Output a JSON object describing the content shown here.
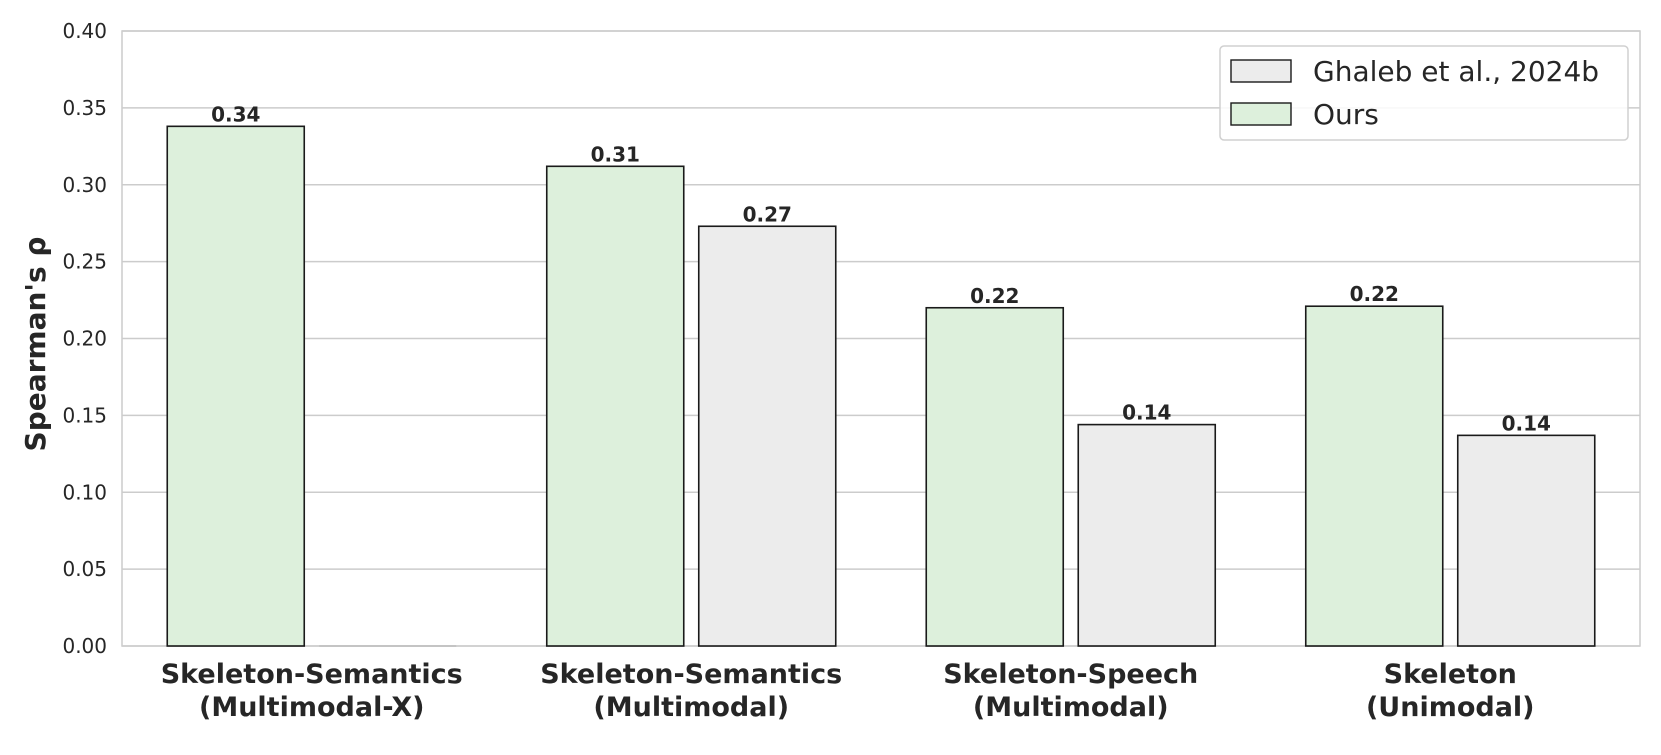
{
  "chart_data": {
    "type": "bar",
    "categories": [
      [
        "Skeleton-Semantics",
        "(Multimodal-X)"
      ],
      [
        "Skeleton-Semantics",
        "(Multimodal)"
      ],
      [
        "Skeleton-Speech",
        "(Multimodal)"
      ],
      [
        "Skeleton",
        "(Unimodal)"
      ]
    ],
    "series": [
      {
        "name": "Ours",
        "color": "#ddf0dc",
        "values": [
          0.338,
          0.312,
          0.22,
          0.221
        ],
        "labels": [
          "0.34",
          "0.31",
          "0.22",
          "0.22"
        ]
      },
      {
        "name": "Ghaleb et al., 2024b",
        "color": "#ececec",
        "values": [
          0.0,
          0.273,
          0.144,
          0.137
        ],
        "labels": [
          "",
          "0.27",
          "0.14",
          "0.14"
        ]
      }
    ],
    "legend_order": [
      1,
      0
    ],
    "ylabel": "Spearman's ρ",
    "xlabel": "",
    "ylim": [
      0,
      0.4
    ],
    "yticks": [
      "0.00",
      "0.05",
      "0.10",
      "0.15",
      "0.20",
      "0.25",
      "0.30",
      "0.35",
      "0.40"
    ],
    "grid": "horizontal",
    "legend_position": "top-right",
    "colors": {
      "grid": "#cccccc",
      "edge": "#1a1a1a",
      "text": "#262626",
      "frame": "#cccccc"
    }
  }
}
